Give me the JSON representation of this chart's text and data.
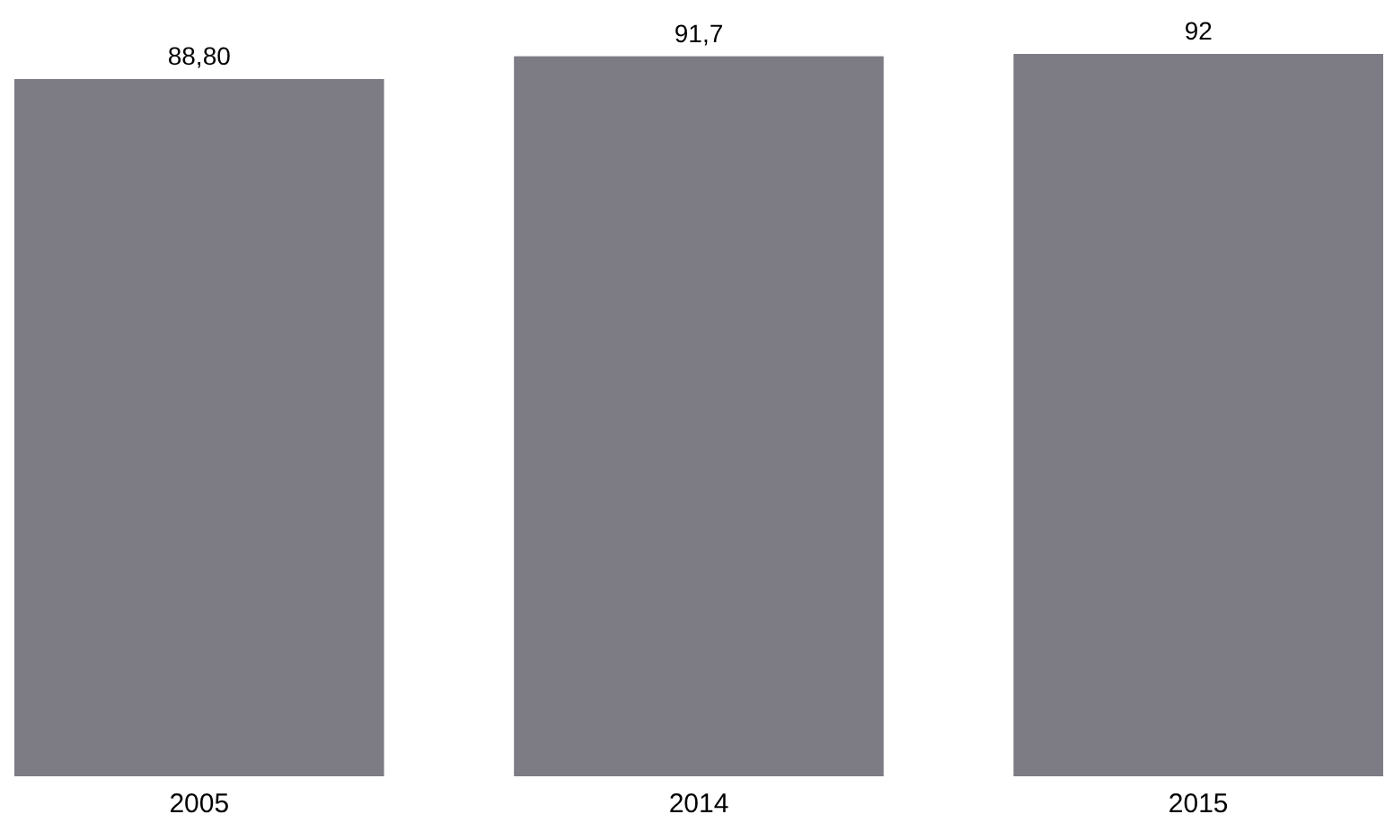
{
  "chart_data": {
    "type": "bar",
    "categories": [
      "2005",
      "2014",
      "2015"
    ],
    "values": [
      88.8,
      91.7,
      92
    ],
    "value_labels": [
      "88,80",
      "91,7",
      "92"
    ],
    "color": "#7d7c84"
  }
}
